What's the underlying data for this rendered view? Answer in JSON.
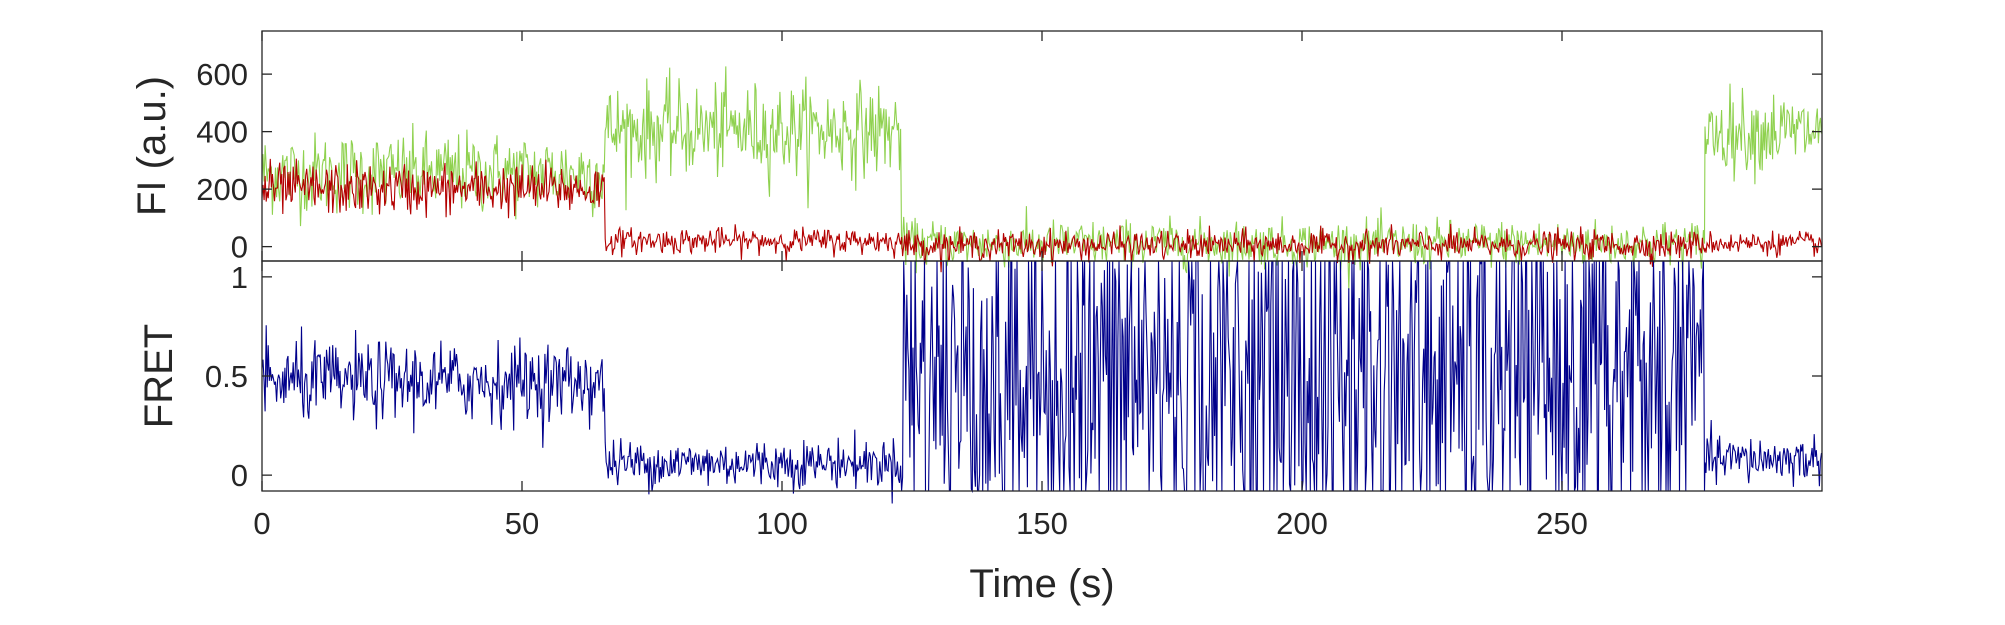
{
  "chart_data": [
    {
      "type": "line",
      "panel": "top",
      "ylabel": "FI (a.u.)",
      "xlim": [
        0,
        300
      ],
      "ylim": [
        -50,
        750
      ],
      "yticks": [
        0,
        200,
        400,
        600
      ],
      "ytick_labels": [
        "0",
        "200",
        "400",
        "600"
      ],
      "grid": false,
      "series": [
        {
          "color": "#8fd14f",
          "segments": [
            {
              "x_start": 0,
              "x_end": 66,
              "mean": 255,
              "noise": 70
            },
            {
              "x_start": 66,
              "x_end": 123,
              "mean": 405,
              "noise": 80
            },
            {
              "x_start": 123,
              "x_end": 277.5,
              "mean": 10,
              "noise": 40
            },
            {
              "x_start": 277.5,
              "x_end": 300,
              "mean": 400,
              "noise": 70
            }
          ]
        },
        {
          "color": "#b30000",
          "segments": [
            {
              "x_start": 0,
              "x_end": 66,
              "mean": 200,
              "noise": 45
            },
            {
              "x_start": 66,
              "x_end": 123,
              "mean": 20,
              "noise": 22
            },
            {
              "x_start": 123,
              "x_end": 277.5,
              "mean": 5,
              "noise": 25
            },
            {
              "x_start": 277.5,
              "x_end": 300,
              "mean": 12,
              "noise": 20
            }
          ]
        }
      ]
    },
    {
      "type": "line",
      "panel": "bottom",
      "xlabel": "Time (s)",
      "ylabel": "FRET",
      "xlim": [
        0,
        300
      ],
      "ylim": [
        -0.08,
        1.08
      ],
      "xticks": [
        0,
        50,
        100,
        150,
        200,
        250
      ],
      "xtick_labels": [
        "0",
        "50",
        "100",
        "150",
        "200",
        "250"
      ],
      "yticks": [
        0,
        0.5,
        1
      ],
      "ytick_labels": [
        "0",
        "0.5",
        "1"
      ],
      "grid": false,
      "series": [
        {
          "color": "#00008b",
          "segments": [
            {
              "x_start": 0,
              "x_end": 66,
              "mean": 0.47,
              "noise": 0.1
            },
            {
              "x_start": 66,
              "x_end": 123,
              "mean": 0.06,
              "noise": 0.06
            },
            {
              "x_start": 123,
              "x_end": 277.5,
              "mean": 0.5,
              "noise": 0.6,
              "clip": [
                -0.08,
                1.08
              ]
            },
            {
              "x_start": 277.5,
              "x_end": 300,
              "mean": 0.08,
              "noise": 0.06
            }
          ]
        }
      ]
    }
  ]
}
